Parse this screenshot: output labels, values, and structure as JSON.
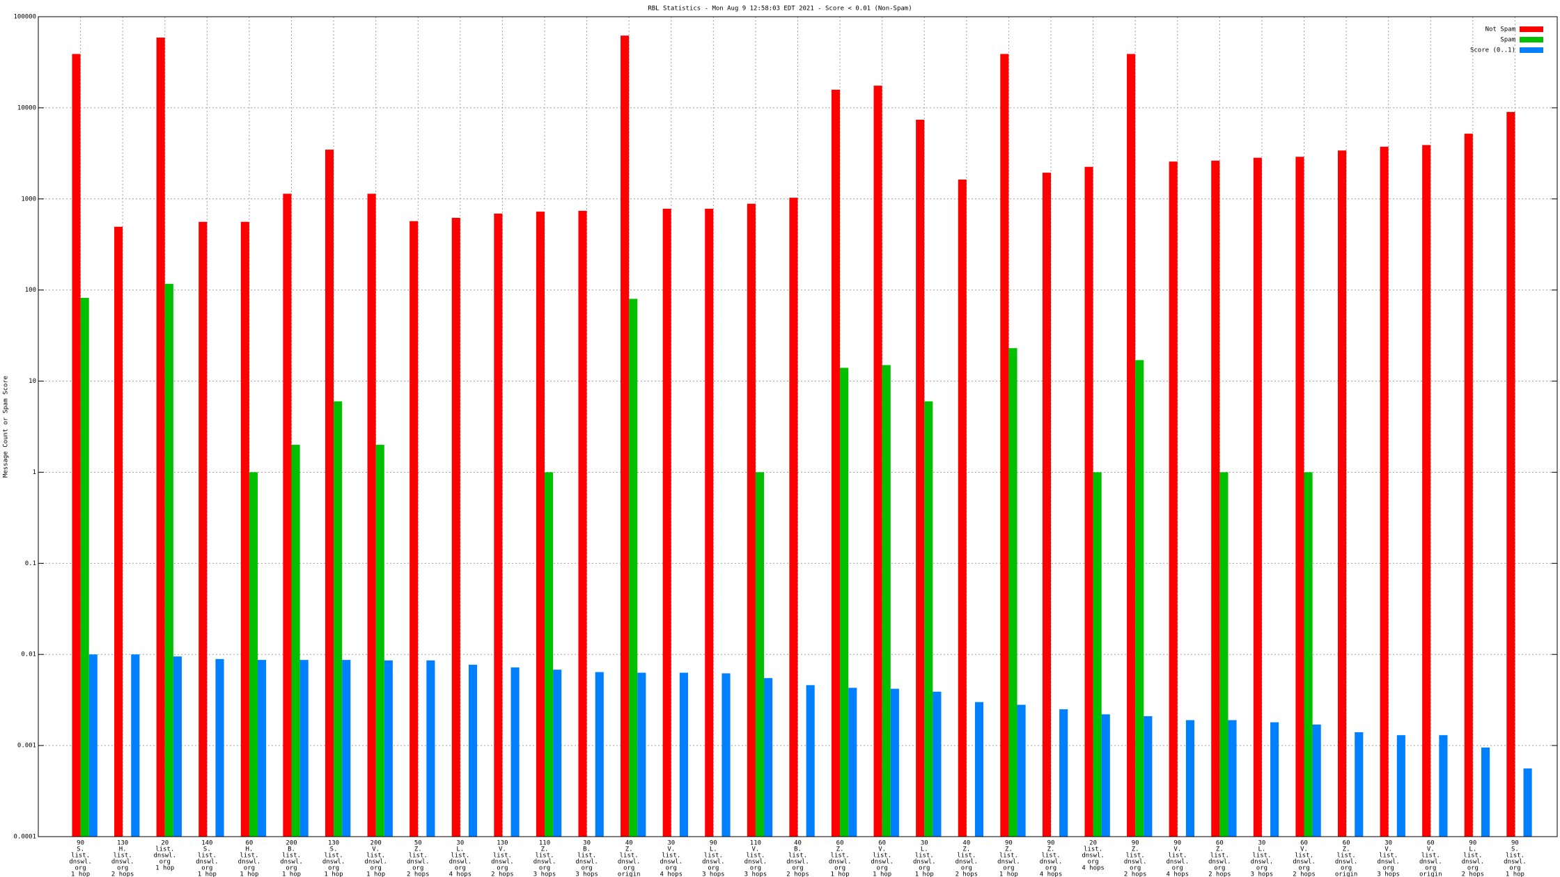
{
  "chart_data": {
    "type": "bar",
    "title": "RBL Statistics - Mon Aug  9 12:58:03 EDT 2021 - Score < 0.01 (Non-Spam)",
    "y_label": "Message Count or Spam Score",
    "log_scale": true,
    "grid": true,
    "legend": "top-right",
    "xlim": [
      -1,
      35
    ],
    "ylim": [
      0.0001,
      100000
    ],
    "yticks": [
      100000,
      10000,
      1000,
      100,
      10,
      1,
      0.1,
      0.01,
      0.001,
      0.0001
    ],
    "categories": [
      [
        "90",
        "S.",
        "list.",
        "dnswl.",
        "org",
        "1 hop"
      ],
      [
        "130",
        "H.",
        "list.",
        "dnswl.",
        "org",
        "2 hops"
      ],
      [
        "20",
        "list.",
        "dnswl.",
        "org",
        "1 hop"
      ],
      [
        "140",
        "S.",
        "list.",
        "dnswl.",
        "org",
        "1 hop"
      ],
      [
        "60",
        "H.",
        "list.",
        "dnswl.",
        "org",
        "1 hop"
      ],
      [
        "200",
        "B.",
        "list.",
        "dnswl.",
        "org",
        "1 hop"
      ],
      [
        "130",
        "S.",
        "list.",
        "dnswl.",
        "org",
        "1 hop"
      ],
      [
        "200",
        "V.",
        "list.",
        "dnswl.",
        "org",
        "1 hop"
      ],
      [
        "50",
        "Z.",
        "list.",
        "dnswl.",
        "org",
        "2 hops"
      ],
      [
        "30",
        "L.",
        "list.",
        "dnswl.",
        "org",
        "4 hops"
      ],
      [
        "130",
        "V.",
        "list.",
        "dnswl.",
        "org",
        "2 hops"
      ],
      [
        "110",
        "Z.",
        "list.",
        "dnswl.",
        "org",
        "3 hops"
      ],
      [
        "30",
        "B.",
        "list.",
        "dnswl.",
        "org",
        "3 hops"
      ],
      [
        "40",
        "Z.",
        "list.",
        "dnswl.",
        "org",
        "origin"
      ],
      [
        "30",
        "V.",
        "list.",
        "dnswl.",
        "org",
        "4 hops"
      ],
      [
        "90",
        "L.",
        "list.",
        "dnswl.",
        "org",
        "3 hops"
      ],
      [
        "110",
        "V.",
        "list.",
        "dnswl.",
        "org",
        "3 hops"
      ],
      [
        "40",
        "B.",
        "list.",
        "dnswl.",
        "org",
        "2 hops"
      ],
      [
        "60",
        "Z.",
        "list.",
        "dnswl.",
        "org",
        "1 hop"
      ],
      [
        "60",
        "V.",
        "list.",
        "dnswl.",
        "org",
        "1 hop"
      ],
      [
        "30",
        "L.",
        "list.",
        "dnswl.",
        "org",
        "1 hop"
      ],
      [
        "40",
        "Z.",
        "list.",
        "dnswl.",
        "org",
        "2 hops"
      ],
      [
        "90",
        "Z.",
        "list.",
        "dnswl.",
        "org",
        "1 hop"
      ],
      [
        "90",
        "Z.",
        "list.",
        "dnswl.",
        "org",
        "4 hops"
      ],
      [
        "20",
        "list.",
        "dnswl.",
        "org",
        "4 hops"
      ],
      [
        "90",
        "Z.",
        "list.",
        "dnswl.",
        "org",
        "2 hops"
      ],
      [
        "90",
        "V.",
        "list.",
        "dnswl.",
        "org",
        "4 hops"
      ],
      [
        "60",
        "Z.",
        "list.",
        "dnswl.",
        "org",
        "2 hops"
      ],
      [
        "30",
        "L.",
        "list.",
        "dnswl.",
        "org",
        "3 hops"
      ],
      [
        "60",
        "V.",
        "list.",
        "dnswl.",
        "org",
        "2 hops"
      ],
      [
        "60",
        "Z.",
        "list.",
        "dnswl.",
        "org",
        "origin"
      ],
      [
        "30",
        "V.",
        "list.",
        "dnswl.",
        "org",
        "3 hops"
      ],
      [
        "60",
        "V.",
        "list.",
        "dnswl.",
        "org",
        "origin"
      ],
      [
        "90",
        "L.",
        "list.",
        "dnswl.",
        "org",
        "2 hops"
      ],
      [
        "90",
        "S.",
        "list.",
        "dnswl.",
        "org",
        "1 hop"
      ]
    ],
    "series": [
      {
        "name": "Not Spam",
        "color": "#ff0000",
        "values": [
          39000,
          495,
          59000,
          560,
          560,
          1140,
          3470,
          1140,
          570,
          620,
          690,
          725,
          740,
          62000,
          780,
          780,
          885,
          1030,
          15800,
          17500,
          7400,
          1630,
          39000,
          1940,
          2250,
          39000,
          2570,
          2630,
          2830,
          2900,
          3400,
          3740,
          3900,
          5200,
          9000
        ]
      },
      {
        "name": "Spam",
        "color": "#00c000",
        "values": [
          82,
          null,
          117,
          null,
          1,
          2,
          6,
          2,
          null,
          null,
          null,
          1,
          null,
          80,
          null,
          null,
          1,
          null,
          14,
          15,
          6,
          null,
          23,
          null,
          1,
          17,
          null,
          1,
          null,
          1,
          null,
          null,
          null,
          null,
          null
        ]
      },
      {
        "name": "Score (0..1)",
        "color": "#0080ff",
        "values": [
          0.01,
          0.01,
          0.0095,
          0.0089,
          0.0087,
          0.0087,
          0.0087,
          0.0086,
          0.0086,
          0.0077,
          0.0072,
          0.0068,
          0.0064,
          0.0063,
          0.0063,
          0.0062,
          0.0055,
          0.0046,
          0.0043,
          0.0042,
          0.0039,
          0.003,
          0.0028,
          0.0025,
          0.0022,
          0.0021,
          0.0019,
          0.0019,
          0.0018,
          0.0017,
          0.0014,
          0.0013,
          0.0013,
          0.00095,
          0.00056
        ]
      }
    ]
  }
}
